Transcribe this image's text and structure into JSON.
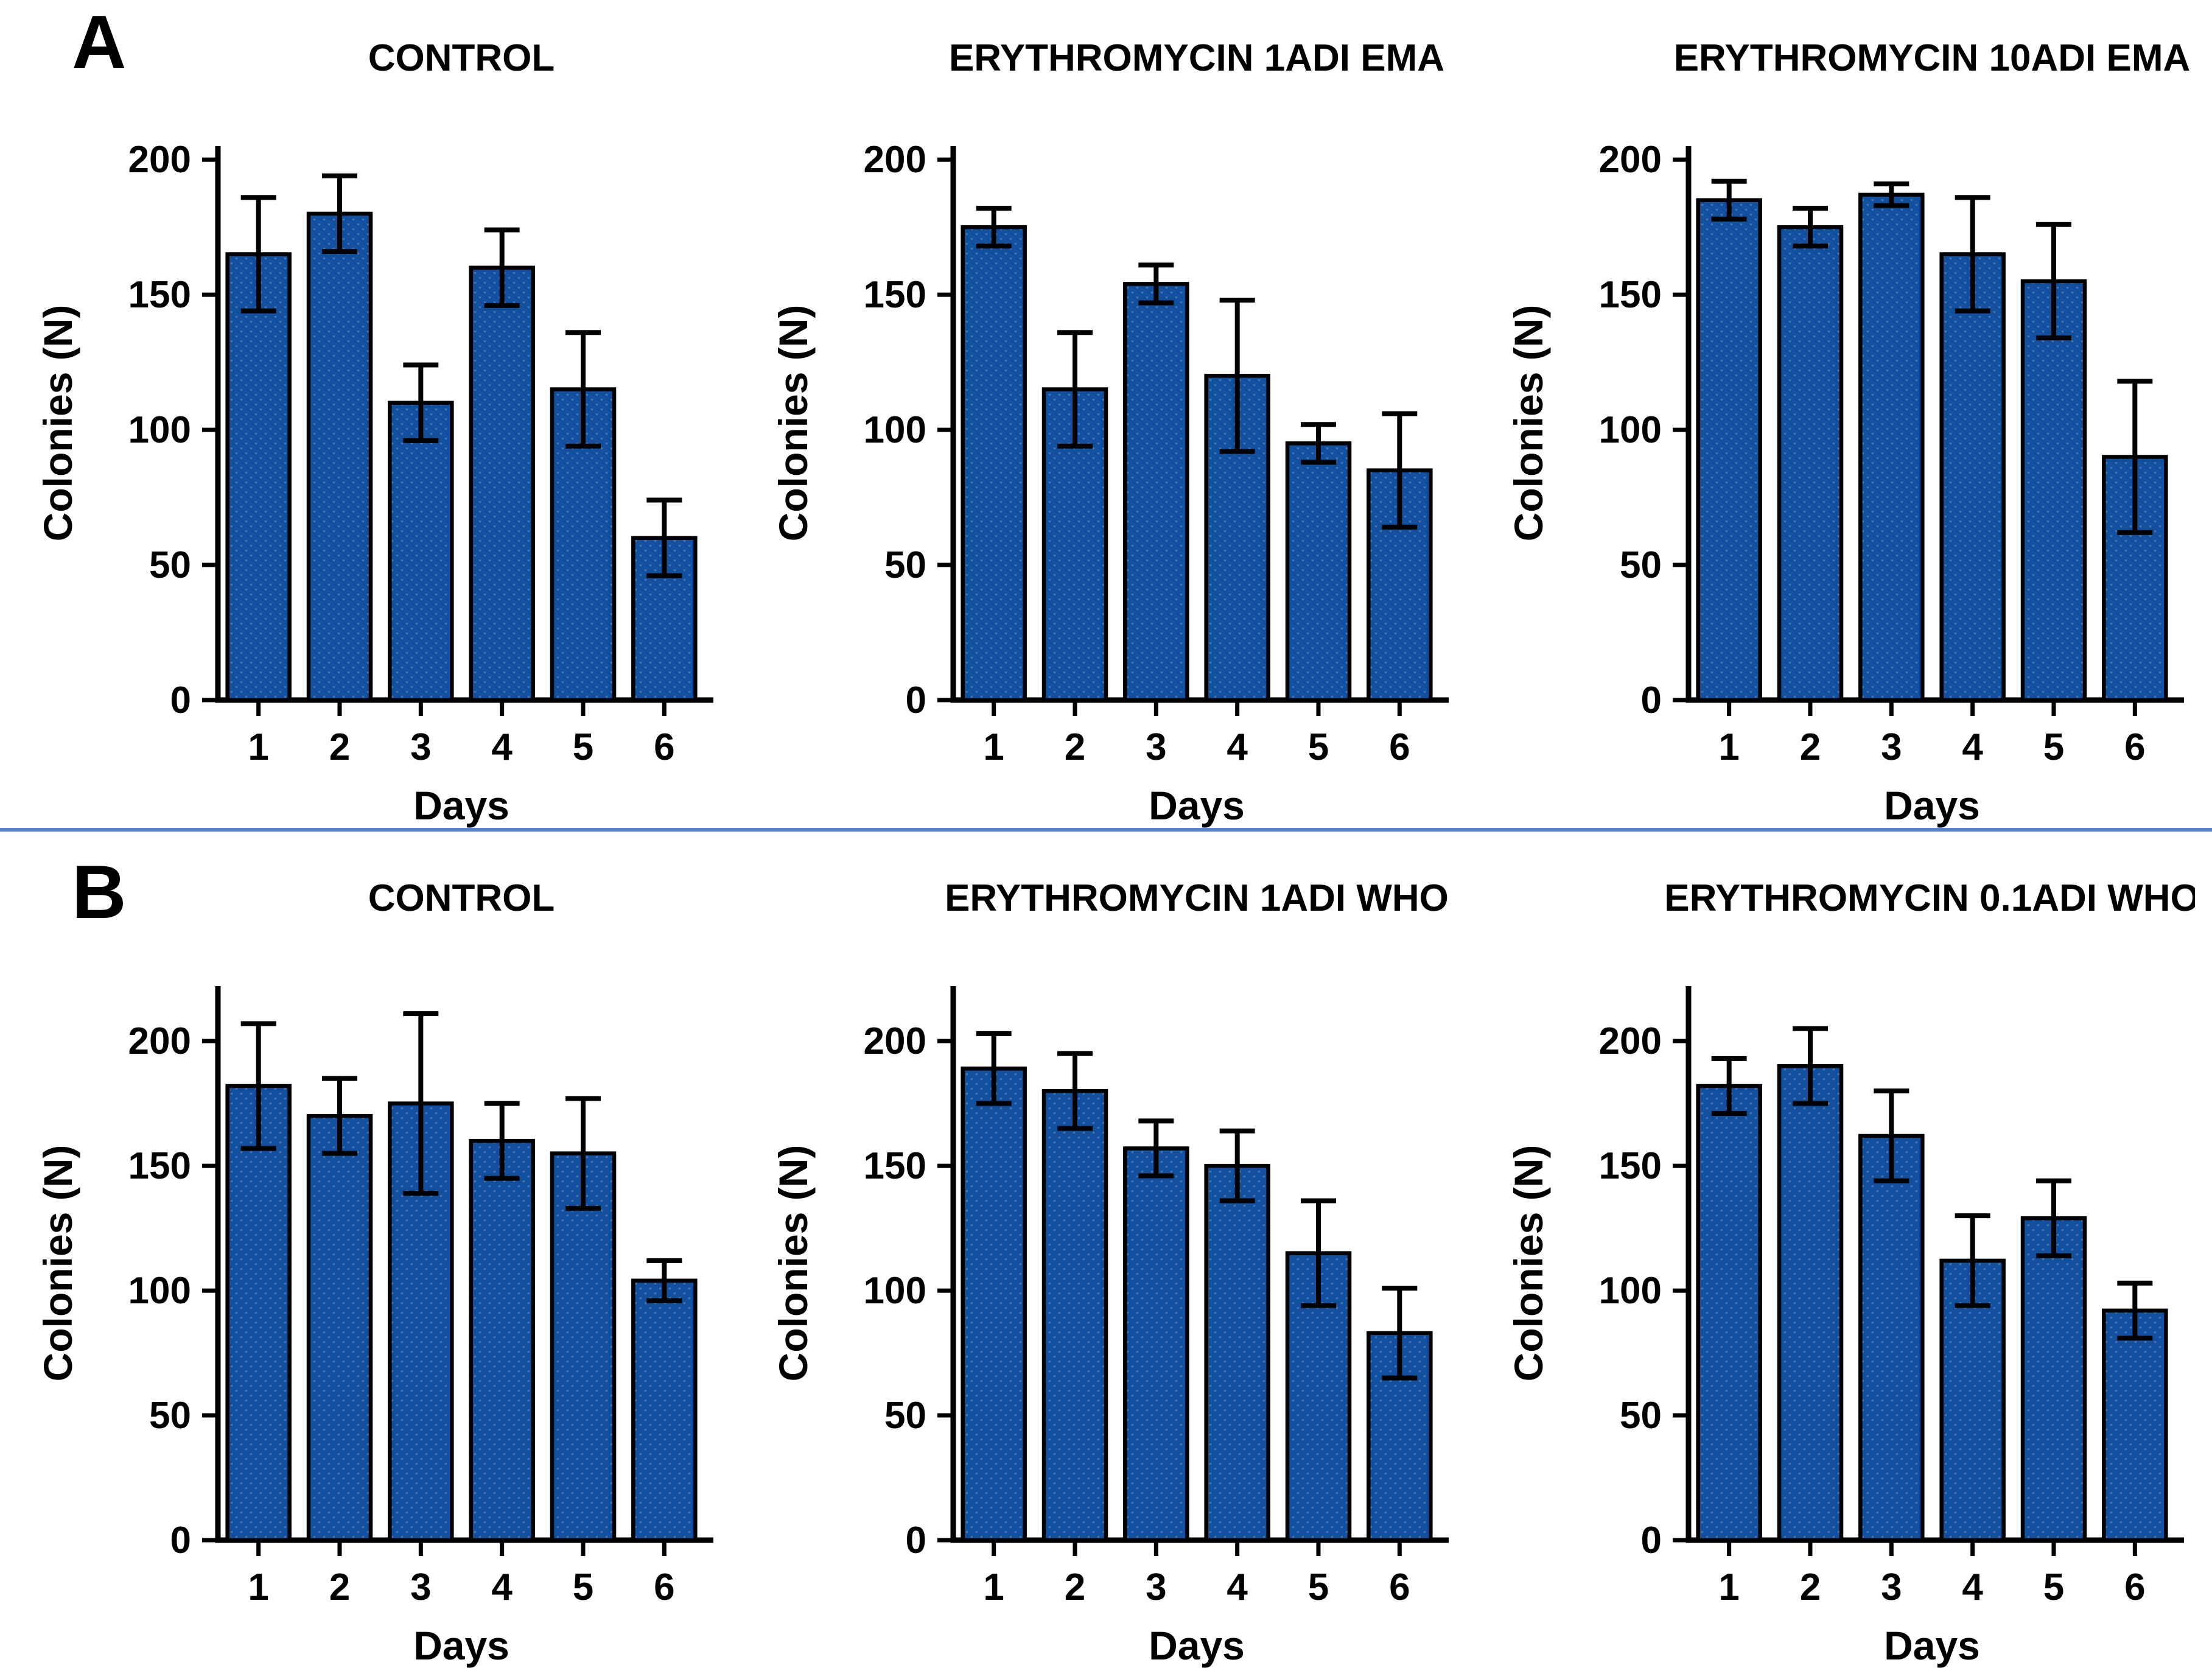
{
  "figure": {
    "background": "#ffffff",
    "divider_color": "#5b85cf",
    "bar_fill": "#11509e",
    "bar_dot_color": "#6b7fa8",
    "axis_color": "#000000",
    "text_color": "#000000"
  },
  "panels": [
    {
      "label": "A"
    },
    {
      "label": "B"
    }
  ],
  "chart_data": [
    {
      "panel": "A",
      "type": "bar",
      "title": "CONTROL",
      "xlabel": "Days",
      "ylabel": "Colonies (N)",
      "categories": [
        "1",
        "2",
        "3",
        "4",
        "5",
        "6"
      ],
      "values": [
        165,
        180,
        110,
        160,
        115,
        60
      ],
      "errors": [
        21,
        14,
        14,
        14,
        21,
        14
      ],
      "yticks": [
        0,
        50,
        100,
        150,
        200
      ],
      "ylim": [
        0,
        205
      ],
      "grid": false,
      "legend": false
    },
    {
      "panel": "A",
      "type": "bar",
      "title": "ERYTHROMYCIN 1ADI EMA",
      "xlabel": "Days",
      "ylabel": "Colonies (N)",
      "categories": [
        "1",
        "2",
        "3",
        "4",
        "5",
        "6"
      ],
      "values": [
        175,
        115,
        154,
        120,
        95,
        85
      ],
      "errors": [
        7,
        21,
        7,
        28,
        7,
        21
      ],
      "yticks": [
        0,
        50,
        100,
        150,
        200
      ],
      "ylim": [
        0,
        205
      ],
      "grid": false,
      "legend": false
    },
    {
      "panel": "A",
      "type": "bar",
      "title": "ERYTHROMYCIN 10ADI EMA",
      "xlabel": "Days",
      "ylabel": "Colonies (N)",
      "categories": [
        "1",
        "2",
        "3",
        "4",
        "5",
        "6"
      ],
      "values": [
        185,
        175,
        187,
        165,
        155,
        90
      ],
      "errors": [
        7,
        7,
        4,
        21,
        21,
        28
      ],
      "yticks": [
        0,
        50,
        100,
        150,
        200
      ],
      "ylim": [
        0,
        205
      ],
      "grid": false,
      "legend": false
    },
    {
      "panel": "B",
      "type": "bar",
      "title": "CONTROL",
      "xlabel": "Days",
      "ylabel": "Colonies (N)",
      "categories": [
        "1",
        "2",
        "3",
        "4",
        "5",
        "6"
      ],
      "values": [
        182,
        170,
        175,
        160,
        155,
        104
      ],
      "errors": [
        25,
        15,
        36,
        15,
        22,
        8
      ],
      "yticks": [
        0,
        50,
        100,
        150,
        200
      ],
      "ylim": [
        0,
        222
      ],
      "grid": false,
      "legend": false
    },
    {
      "panel": "B",
      "type": "bar",
      "title": "ERYTHROMYCIN 1ADI WHO",
      "xlabel": "Days",
      "ylabel": "Colonies (N)",
      "categories": [
        "1",
        "2",
        "3",
        "4",
        "5",
        "6"
      ],
      "values": [
        189,
        180,
        157,
        150,
        115,
        83
      ],
      "errors": [
        14,
        15,
        11,
        14,
        21,
        18
      ],
      "yticks": [
        0,
        50,
        100,
        150,
        200
      ],
      "ylim": [
        0,
        222
      ],
      "grid": false,
      "legend": false
    },
    {
      "panel": "B",
      "type": "bar",
      "title": "ERYTHROMYCIN 0.1ADI WHO",
      "xlabel": "Days",
      "ylabel": "Colonies (N)",
      "categories": [
        "1",
        "2",
        "3",
        "4",
        "5",
        "6"
      ],
      "values": [
        182,
        190,
        162,
        112,
        129,
        92
      ],
      "errors": [
        11,
        15,
        18,
        18,
        15,
        11
      ],
      "yticks": [
        0,
        50,
        100,
        150,
        200
      ],
      "ylim": [
        0,
        222
      ],
      "grid": false,
      "legend": false
    }
  ]
}
